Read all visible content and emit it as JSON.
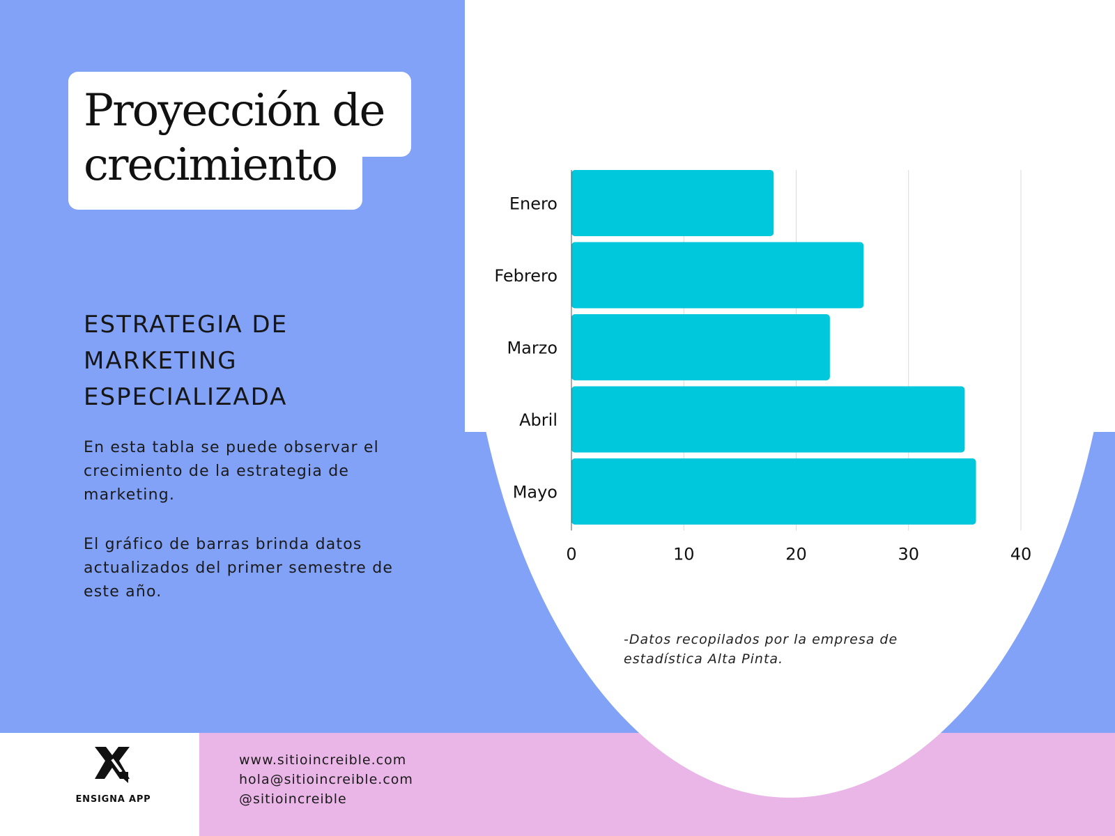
{
  "title": "Proyección de crecimiento",
  "subtitle": "ESTRATEGIA DE MARKETING ESPECIALIZADA",
  "paragraphs": [
    "En esta tabla se puede observar el crecimiento de la estrategia de marketing.",
    "El gráfico de barras brinda datos actualizados del primer semestre de este año."
  ],
  "source_note": "-Datos recopilados por la empresa de estadística Alta Pinta.",
  "brand": {
    "name": "ENSIGNA APP",
    "logo_icon": "x-logo-icon"
  },
  "contact": [
    "www.sitioincreible.com",
    "hola@sitioincreible.com",
    "@sitioincreible"
  ],
  "colors": {
    "background": "#82a2f8",
    "bar": "#00c8dc",
    "footer": "#eab6e7",
    "panel": "#ffffff",
    "grid": "#d9d9d9"
  },
  "chart_data": {
    "type": "bar",
    "orientation": "horizontal",
    "categories": [
      "Enero",
      "Febrero",
      "Marzo",
      "Abril",
      "Mayo"
    ],
    "values": [
      18,
      26,
      23,
      35,
      36
    ],
    "xlim": [
      0,
      40
    ],
    "xticks": [
      0,
      10,
      20,
      30,
      40
    ],
    "grid": true,
    "title": "",
    "xlabel": "",
    "ylabel": ""
  }
}
